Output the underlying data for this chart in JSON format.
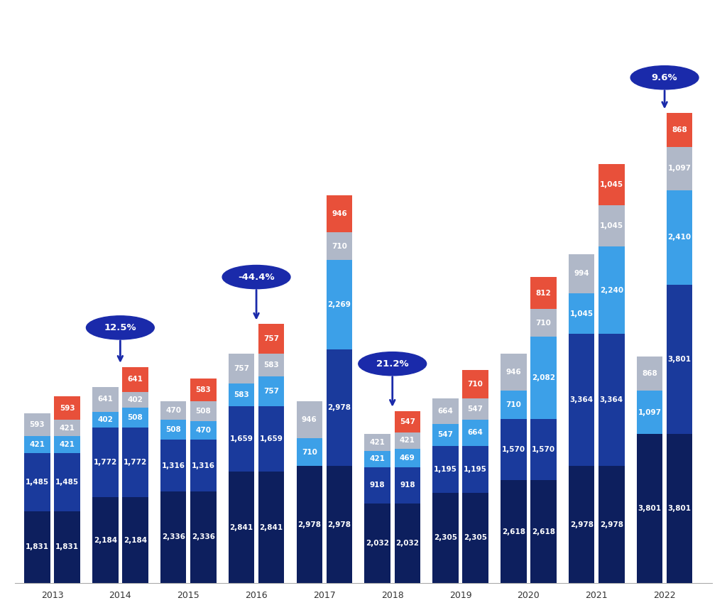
{
  "years": [
    "2013",
    "2014",
    "2015",
    "2016",
    "2017",
    "2018",
    "2019",
    "2020",
    "2021",
    "2022"
  ],
  "bar_left": {
    "dark_navy": [
      1831,
      2184,
      2336,
      2841,
      2978,
      2032,
      2305,
      2618,
      2978,
      3801
    ],
    "blue": [
      1485,
      1772,
      1316,
      1659,
      0,
      918,
      1195,
      1570,
      3364,
      0
    ],
    "light_blue": [
      421,
      402,
      508,
      583,
      710,
      421,
      547,
      710,
      1045,
      1097
    ],
    "gray": [
      593,
      641,
      470,
      757,
      946,
      421,
      664,
      946,
      994,
      868
    ]
  },
  "bar_right": {
    "dark_navy": [
      1831,
      2184,
      2336,
      2841,
      2978,
      2032,
      2305,
      2618,
      2978,
      3801
    ],
    "blue": [
      1485,
      1772,
      1316,
      1659,
      2978,
      918,
      1195,
      1570,
      3364,
      3801
    ],
    "light_blue": [
      421,
      508,
      470,
      757,
      2269,
      469,
      664,
      2082,
      2240,
      2410
    ],
    "gray": [
      421,
      402,
      508,
      583,
      710,
      421,
      547,
      710,
      1045,
      1097
    ],
    "red": [
      593,
      641,
      583,
      757,
      946,
      547,
      710,
      812,
      1045,
      868
    ]
  },
  "labels_left": {
    "dark_navy": [
      1831,
      2184,
      2336,
      2841,
      2978,
      2032,
      2305,
      2618,
      2978,
      3801
    ],
    "blue": [
      1485,
      1772,
      1316,
      1659,
      null,
      918,
      1195,
      1570,
      3364,
      null
    ],
    "light_blue": [
      421,
      402,
      508,
      583,
      710,
      421,
      547,
      710,
      1045,
      1097
    ],
    "gray": [
      593,
      641,
      470,
      757,
      946,
      421,
      664,
      946,
      994,
      868
    ]
  },
  "labels_right": {
    "blue": [
      null,
      null,
      null,
      null,
      null,
      null,
      null,
      null,
      null,
      null
    ],
    "light_blue": [
      null,
      508,
      470,
      757,
      2269,
      469,
      null,
      2082,
      2240,
      2410
    ],
    "gray": [
      null,
      null,
      null,
      null,
      710,
      null,
      547,
      710,
      1045,
      1097
    ],
    "red": [
      null,
      null,
      583,
      757,
      946,
      547,
      710,
      812,
      1045,
      868
    ]
  },
  "bubbles": [
    {
      "xi": 1,
      "pct": "12.5%"
    },
    {
      "xi": 3,
      "pct": "-44.4%"
    },
    {
      "xi": 5,
      "pct": "21.2%"
    },
    {
      "xi": 9,
      "pct": "9.6%"
    }
  ],
  "colors": {
    "dark_navy": "#0d1f5e",
    "blue": "#1a3a9c",
    "light_blue": "#3ca0e8",
    "gray": "#b0b8c8",
    "red": "#e8503a"
  },
  "bubble_color": "#1a2aaa",
  "bg_color": "#ffffff",
  "bar_width": 0.38,
  "bar_gap": 0.06
}
